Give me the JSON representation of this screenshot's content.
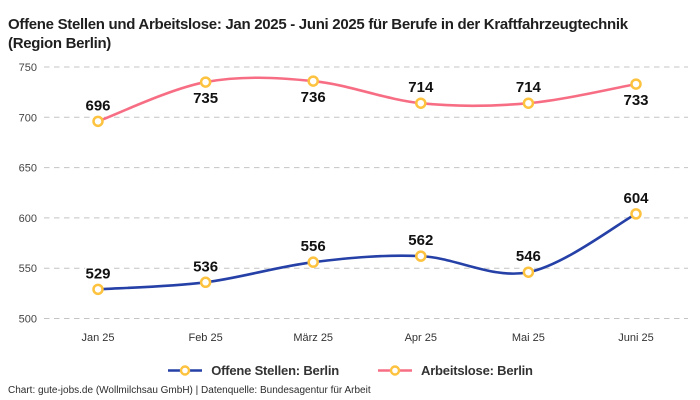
{
  "header": {
    "title": "Offene Stellen und Arbeitslose: Jan 2025 - Juni 2025 für Berufe in der Kraftfahrzeugtechnik (Region Berlin)"
  },
  "chart_data": {
    "type": "line",
    "title": "Offene Stellen und Arbeitslose: Jan 2025 - Juni 2025 für Berufe in der Kraftfahrzeugtechnik (Region Berlin)",
    "categories": [
      "Jan 25",
      "Feb 25",
      "März 25",
      "Apr 25",
      "Mai 25",
      "Juni 25"
    ],
    "series": [
      {
        "name": "Offene Stellen: Berlin",
        "color": "#2540a6",
        "values": [
          529,
          536,
          556,
          562,
          546,
          604
        ],
        "label_positions": [
          "above",
          "above",
          "above",
          "above",
          "above",
          "above"
        ]
      },
      {
        "name": "Arbeitslose: Berlin",
        "color": "#f76e84",
        "values": [
          696,
          735,
          736,
          714,
          714,
          733
        ],
        "label_positions": [
          "above",
          "below",
          "below",
          "above",
          "above",
          "below"
        ]
      }
    ],
    "marker": {
      "fill": "#ffffff",
      "stroke": "#fdc23e"
    },
    "ylim": [
      500,
      750
    ],
    "yticks": [
      500,
      550,
      600,
      650,
      700,
      750
    ],
    "grid": "dashed-horizontal",
    "grid_color": "#c4c4c4",
    "curve": "smooth",
    "legend_position": "bottom",
    "data_label_color": "#111111",
    "tick_label_color": "#444444"
  },
  "footer": {
    "text": "Chart: gute-jobs.de (Wollmilchsau GmbH) | Datenquelle: Bundesagentur für Arbeit"
  }
}
